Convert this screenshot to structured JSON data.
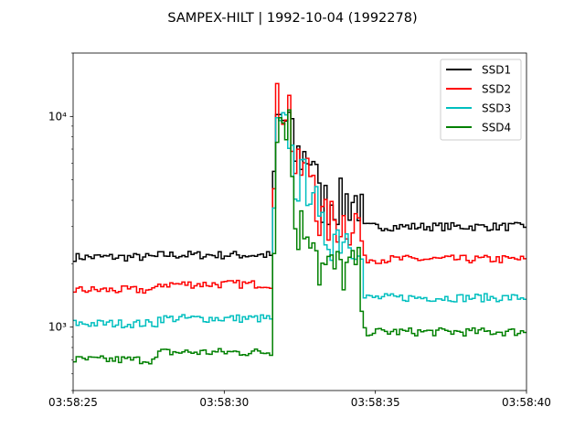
{
  "chart_data": {
    "type": "line",
    "step": true,
    "title": "SAMPEX-HILT | 1992-10-04 (1992278)",
    "xlabel": "",
    "ylabel": "",
    "yscale": "log",
    "xlim": [
      "03:58:25",
      "03:58:40"
    ],
    "ylim": [
      500,
      20000
    ],
    "x_ticks": [
      "03:58:25",
      "03:58:30",
      "03:58:35",
      "03:58:40"
    ],
    "y_ticks": [
      1000,
      10000
    ],
    "y_tick_labels": [
      "10³",
      "10⁴"
    ],
    "grid": false,
    "legend": "top-right",
    "segments": [
      {
        "t": [
          "03:58:25",
          "03:58:27.8"
        ],
        "values": [
          2150,
          1500,
          1040,
          700
        ]
      },
      {
        "t": [
          "03:58:27.8",
          "03:58:31.6"
        ],
        "values": [
          2200,
          1600,
          1100,
          760
        ]
      },
      {
        "t": [
          "03:58:31.7",
          "03:58:32.2"
        ],
        "values": [
          9500,
          11500,
          8500,
          10000
        ]
      },
      {
        "t": [
          "03:58:32.3",
          "03:58:33.0"
        ],
        "values": [
          6500,
          5500,
          5000,
          3000
        ]
      },
      {
        "t": [
          "03:58:33.1",
          "03:58:34.5"
        ],
        "values": [
          4000,
          3200,
          2800,
          1900
        ]
      },
      {
        "t": [
          "03:58:34.6",
          "03:58:40"
        ],
        "values": [
          3000,
          2100,
          1380,
          950
        ]
      }
    ],
    "series": [
      {
        "name": "SSD1",
        "color": "#000000"
      },
      {
        "name": "SSD2",
        "color": "#ff0000"
      },
      {
        "name": "SSD3",
        "color": "#00bfbf"
      },
      {
        "name": "SSD4",
        "color": "#008000"
      }
    ]
  }
}
